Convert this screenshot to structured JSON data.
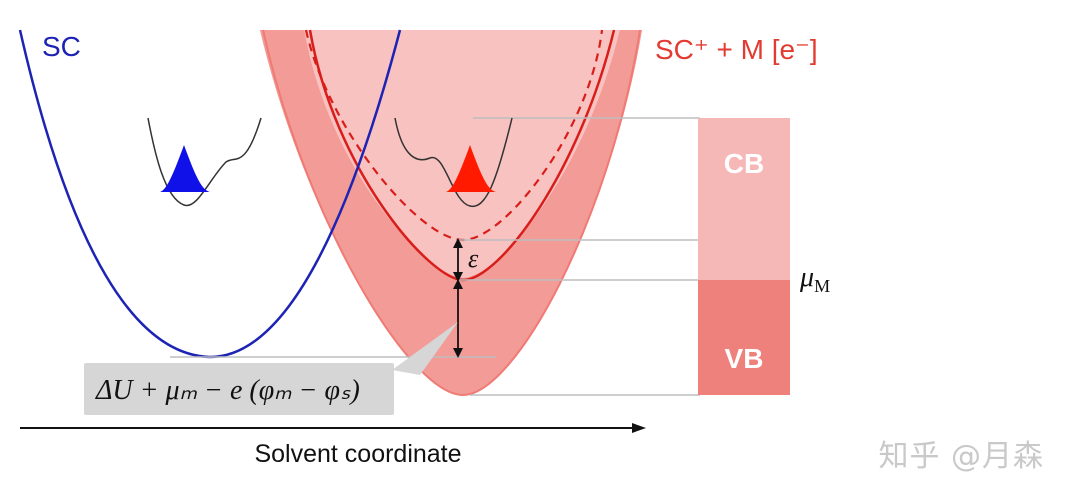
{
  "labels": {
    "sc": "SC",
    "sc_plus_m": "SC⁺ + M [e⁻]",
    "cb": "CB",
    "vb": "VB",
    "epsilon": "ε",
    "mu_m_symbol": "μ",
    "mu_m_subscript": "M",
    "delta_expression": "ΔU + μₘ − e (φₘ − φₛ)",
    "x_axis": "Solvent coordinate",
    "watermark": "知乎 @月森"
  },
  "colors": {
    "sc_curve": "#1d24b4",
    "red_curve": "#d81e1a",
    "band_light": "#f8c2c0",
    "band_mid": "#f6a7a5",
    "band_dark": "#ef7f79",
    "cb_fill": "#f6b8b6",
    "vb_fill": "#ef817c",
    "label_box": "#d6d6d6",
    "blue_fill": "#1010e8",
    "red_fill": "#ff1a00",
    "guide_line": "#bdbdbd"
  }
}
